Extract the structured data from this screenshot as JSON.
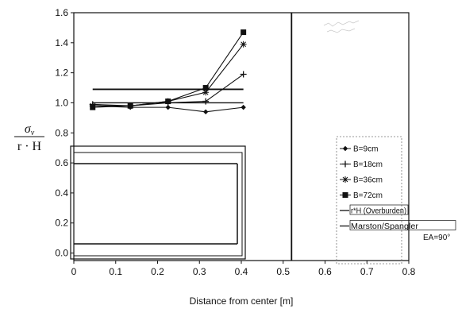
{
  "chart_data": {
    "type": "line",
    "title": "",
    "xlabel": "Distance from center [m]",
    "ylabel": {
      "top": "σ",
      "top_sub": "v",
      "bottom": "r · H"
    },
    "xlim": [
      0,
      0.8
    ],
    "ylim": [
      -0.05,
      1.6
    ],
    "xticks": [
      "0",
      "0.1",
      "0.2",
      "0.3",
      "0.4",
      "0.5",
      "0.6",
      "0.7",
      "0.8"
    ],
    "yticks": [
      "0.0",
      "0.2",
      "0.4",
      "0.6",
      "0.8",
      "1.0",
      "1.2",
      "1.4",
      "1.6"
    ],
    "x": [
      0.045,
      0.135,
      0.225,
      0.315,
      0.405
    ],
    "series": [
      {
        "name": "B=9cm",
        "marker": "diamond",
        "values": [
          0.98,
          0.97,
          0.97,
          0.94,
          0.97
        ]
      },
      {
        "name": "B=18cm",
        "marker": "plus",
        "values": [
          0.99,
          0.98,
          1.0,
          1.01,
          1.19
        ]
      },
      {
        "name": "B=36cm",
        "marker": "star",
        "values": [
          0.98,
          0.98,
          1.01,
          1.07,
          1.39
        ]
      },
      {
        "name": "B=72cm",
        "marker": "square",
        "values": [
          0.97,
          0.98,
          1.01,
          1.1,
          1.47
        ]
      }
    ],
    "reference_lines": [
      {
        "name": "r*H (Overburden)",
        "y": 1.0
      },
      {
        "name": "Marston/Spangler",
        "y": 1.09
      }
    ],
    "vertical_line_x": 0.52,
    "annotation": "EA=90°",
    "legend_position": "right",
    "grid": false
  }
}
